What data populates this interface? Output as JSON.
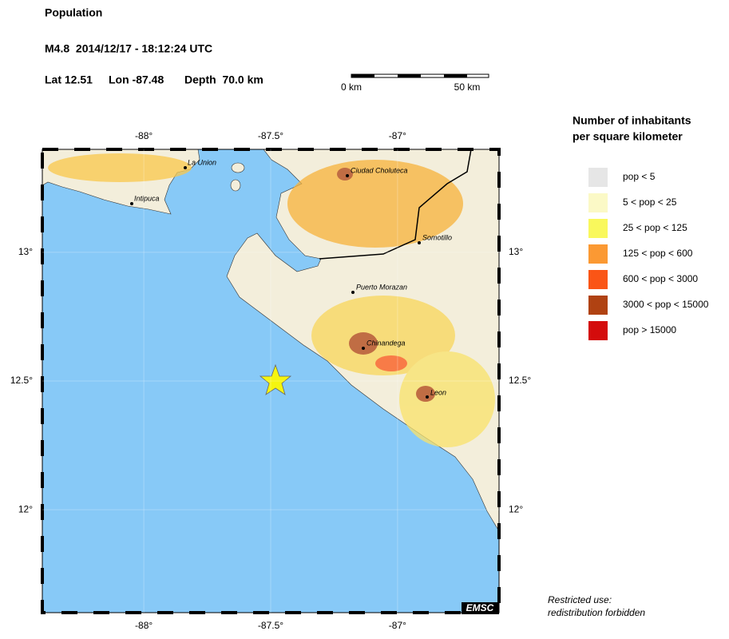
{
  "header": {
    "title": "Population",
    "event": "M4.8  2014/12/17 - 18:12:24 UTC",
    "lat": "Lat 12.51",
    "lon": "Lon -87.48",
    "depth": "Depth  70.0 km"
  },
  "scale": {
    "start": "0 km",
    "end": "50 km"
  },
  "map": {
    "xlim": [
      -88.4,
      -86.6
    ],
    "ylim": [
      11.6,
      13.4
    ],
    "xticks": [
      {
        "value": -88,
        "label": "-88°"
      },
      {
        "value": -87.5,
        "label": "-87.5°"
      },
      {
        "value": -87,
        "label": "-87°"
      }
    ],
    "yticks": [
      {
        "value": 13,
        "label": "13°"
      },
      {
        "value": 12.5,
        "label": "12.5°"
      },
      {
        "value": 12,
        "label": "12°"
      }
    ],
    "credit": "EMSC"
  },
  "cities": [
    "La Union",
    "Intipuca",
    "Ciudad Choluteca",
    "Somotillo",
    "Puerto Morazan",
    "Chinandega",
    "Leon"
  ],
  "legend": {
    "title": [
      "Number of inhabitants",
      "per square kilometer"
    ],
    "items": [
      {
        "label": "pop < 5",
        "color": "#e6e6e6"
      },
      {
        "label": "5 < pop < 25",
        "color": "#fbf9c6"
      },
      {
        "label": "25 < pop < 125",
        "color": "#f9f85c"
      },
      {
        "label": "125 < pop < 600",
        "color": "#fb9933"
      },
      {
        "label": "600 < pop < 3000",
        "color": "#fa5516"
      },
      {
        "label": "3000 < pop < 15000",
        "color": "#b04212"
      },
      {
        "label": "pop > 15000",
        "color": "#d40c0c"
      }
    ]
  },
  "footer": [
    "Restricted use:",
    "redistribution forbidden"
  ]
}
